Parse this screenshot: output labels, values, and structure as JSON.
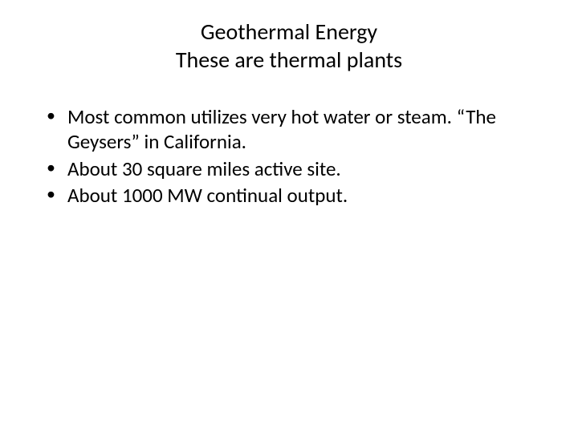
{
  "slide": {
    "title_line1": "Geothermal Energy",
    "title_line2": "These are thermal plants",
    "bullets": [
      "Most common utilizes very hot water or steam. “The Geysers” in California.",
      "About 30 square miles active site.",
      "About 1000 MW continual output."
    ]
  },
  "style": {
    "background_color": "#ffffff",
    "text_color": "#000000",
    "title_fontsize": 28,
    "body_fontsize": 25,
    "font_family": "Calibri"
  }
}
